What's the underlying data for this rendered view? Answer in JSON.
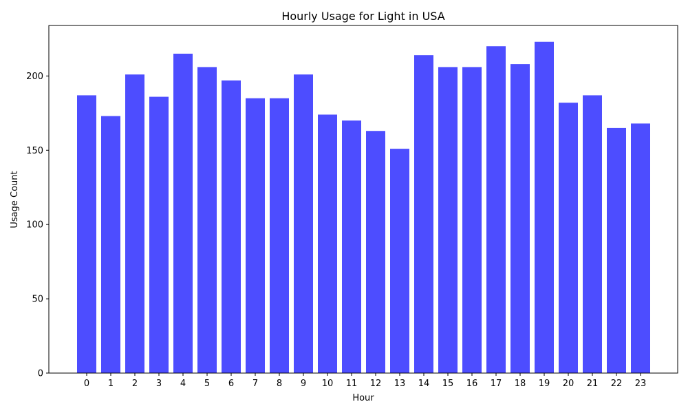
{
  "chart_data": {
    "type": "bar",
    "title": "Hourly Usage for Light in USA",
    "xlabel": "Hour",
    "ylabel": "Usage Count",
    "categories": [
      "0",
      "1",
      "2",
      "3",
      "4",
      "5",
      "6",
      "7",
      "8",
      "9",
      "10",
      "11",
      "12",
      "13",
      "14",
      "15",
      "16",
      "17",
      "18",
      "19",
      "20",
      "21",
      "22",
      "23"
    ],
    "values": [
      187,
      173,
      201,
      186,
      215,
      206,
      197,
      185,
      185,
      201,
      174,
      170,
      163,
      151,
      214,
      206,
      206,
      220,
      208,
      223,
      182,
      187,
      165,
      168
    ],
    "yticks": [
      0,
      50,
      100,
      150,
      200
    ],
    "ylim": [
      0,
      234
    ],
    "grid": false,
    "bar_color": "#4d4dff"
  }
}
